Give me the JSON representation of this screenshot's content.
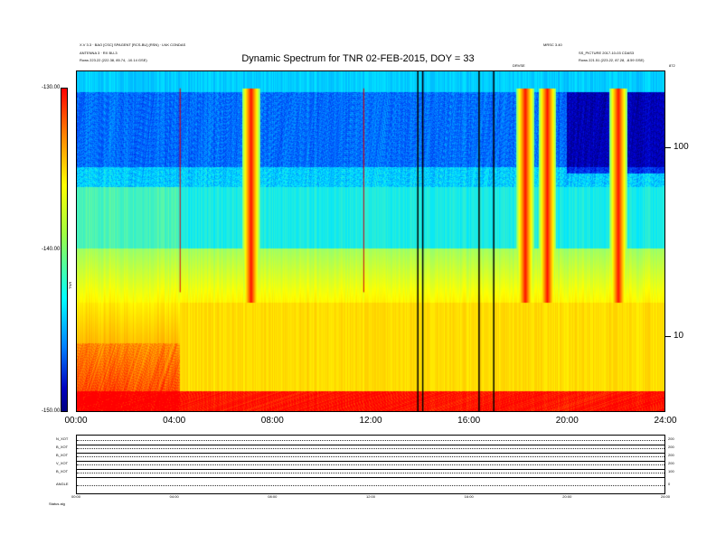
{
  "header": {
    "left_line1": "X.V 3.3 · BAO [CSC] SPAGENT [RCS-BU] (RSN) · LNK CONDAS",
    "left_line2": "ANTENNA 3 · RX BU-3",
    "left_line3": "Rows    223.22 (222.38, 85.74, -10.14 GSE)",
    "right_line1": "MRSC 3.40",
    "right_line2": "SS_PICTURE 2017-10-03 CDAS3",
    "right_line3": "Rows    221.51 (223.22, 87.28, -8.59 GSE)",
    "mid_marker": "DRVSE",
    "far_right": "872"
  },
  "chart_data": {
    "type": "heatmap",
    "title": "Dynamic Spectrum for TNR 02-FEB-2015, DOY = 33",
    "xlabel": "",
    "ylabel": "",
    "x_range_hours": [
      0,
      24
    ],
    "x_ticks": [
      "00:00",
      "04:00",
      "08:00",
      "12:00",
      "16:00",
      "20:00",
      "24:00"
    ],
    "y_scale": "log",
    "y_ticks_right": [
      "100",
      "10"
    ],
    "colorbar": {
      "label": "TNR",
      "ticks": [
        "-130.00",
        "-140.00",
        "-150.00"
      ],
      "range": [
        -150,
        -130
      ],
      "colors": [
        "#ff0000",
        "#ffff00",
        "#00ffff",
        "#0000c0",
        "#000080"
      ]
    },
    "features": {
      "red_bursts_hours": [
        7.1,
        18.3,
        19.2,
        22.1
      ],
      "black_data_gaps_hours": [
        13.9,
        14.1,
        16.4,
        17.0
      ],
      "thin_red_lines_hours": [
        11.7,
        4.2
      ],
      "blue_band_start_hour": 0.0,
      "dark_region_start_hour": 20.0
    }
  },
  "panels": {
    "rows": [
      {
        "label": "N_XOT",
        "right": "200"
      },
      {
        "label": "B_XOT",
        "right": "200"
      },
      {
        "label": "B_XOT",
        "right": "200"
      },
      {
        "label": "V_XOT",
        "right": "200"
      },
      {
        "label": "B_XOT",
        "right": "100"
      },
      {
        "label": "ANGLE",
        "right": "0"
      }
    ],
    "x_ticks": [
      "00:00",
      "04:00",
      "08:00",
      "12:00",
      "16:00",
      "20:00",
      "24:00"
    ],
    "footer_label": "Status   alg"
  }
}
